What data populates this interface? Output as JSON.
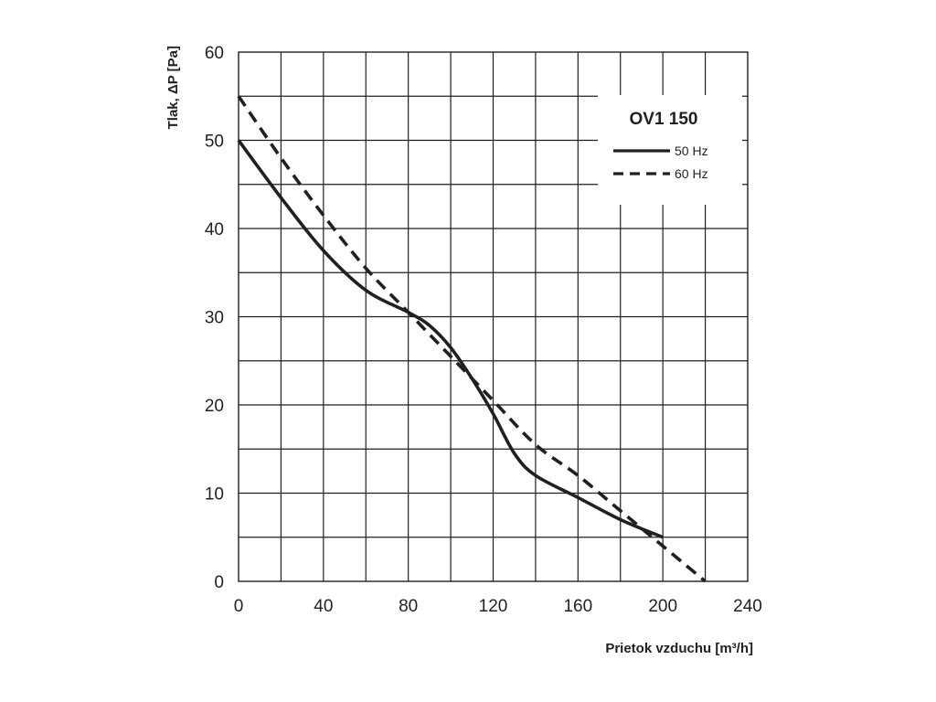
{
  "chart_data": {
    "type": "line",
    "title": "OV1 150",
    "xlabel": "Prietok vzduchu  [m³/h]",
    "ylabel": "Tlak, ΔP [Pa]",
    "xlim": [
      0,
      240
    ],
    "ylim": [
      0,
      60
    ],
    "xticks": [
      0,
      40,
      80,
      120,
      160,
      200,
      240
    ],
    "yticks": [
      0,
      10,
      20,
      30,
      40,
      50,
      60
    ],
    "grid": true,
    "legend_position": "top-right",
    "series": [
      {
        "name": "50 Hz",
        "style": "solid",
        "color": "#231f20",
        "x": [
          0,
          20,
          40,
          60,
          80,
          90,
          100,
          110,
          120,
          130,
          140,
          160,
          180,
          200
        ],
        "y": [
          50,
          43.5,
          37.5,
          33,
          30.5,
          29,
          26.5,
          23,
          19,
          14.5,
          12,
          9.5,
          7,
          5
        ]
      },
      {
        "name": "60 Hz",
        "style": "dashed",
        "color": "#231f20",
        "x": [
          0,
          20,
          40,
          60,
          80,
          100,
          120,
          140,
          160,
          180,
          200,
          220
        ],
        "y": [
          55,
          48,
          41.5,
          35.5,
          30.5,
          25.5,
          20.5,
          15.5,
          12,
          8,
          4,
          0
        ]
      }
    ]
  }
}
